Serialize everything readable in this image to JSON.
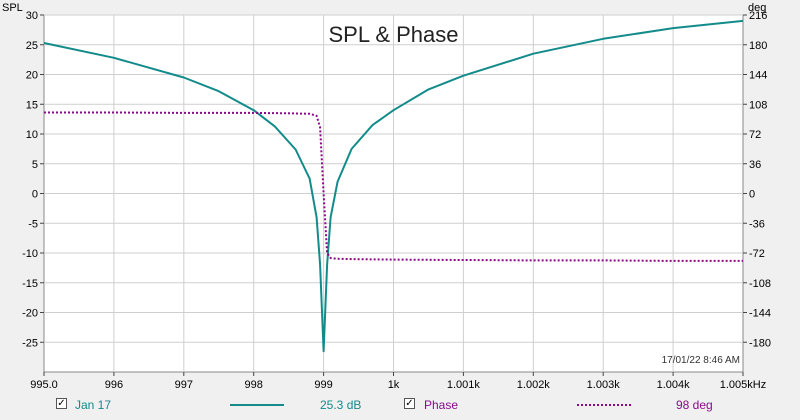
{
  "chart_data": {
    "type": "line",
    "title": "SPL & Phase",
    "left_axis_unit": "SPL",
    "right_axis_unit": "deg",
    "x_ticks": [
      "995.0",
      "996",
      "997",
      "998",
      "999",
      "1k",
      "1.001k",
      "1.002k",
      "1.003k",
      "1.004k",
      "1.005kHz"
    ],
    "x_range": [
      995.0,
      1005.0
    ],
    "y_left_range": [
      -30,
      30
    ],
    "y_left_ticks": [
      "30",
      "25",
      "20",
      "15",
      "10",
      "5",
      "0",
      "-5",
      "-10",
      "-15",
      "-20",
      "-25"
    ],
    "y_right_range": [
      -216,
      216
    ],
    "y_right_ticks": [
      "216",
      "180",
      "144",
      "108",
      "72",
      "36",
      "0",
      "-36",
      "-72",
      "-108",
      "-144",
      "-180"
    ],
    "grid": true,
    "timestamp": "17/01/22 8:46 AM",
    "series": [
      {
        "name": "Jan 17",
        "axis": "left",
        "color": "#138b8b",
        "style": "solid",
        "x": [
          995.0,
          996.0,
          997.0,
          997.5,
          998.0,
          998.3,
          998.6,
          998.8,
          998.9,
          998.95,
          999.0,
          999.05,
          999.1,
          999.2,
          999.4,
          999.7,
          1000.0,
          1000.5,
          1001.0,
          1002.0,
          1003.0,
          1004.0,
          1005.0
        ],
        "values": [
          25.3,
          22.8,
          19.5,
          17.2,
          14.0,
          11.3,
          7.4,
          2.5,
          -4.0,
          -12.0,
          -26.5,
          -12.0,
          -4.0,
          2.0,
          7.5,
          11.5,
          14.0,
          17.5,
          19.8,
          23.5,
          26.0,
          27.8,
          29.0
        ]
      },
      {
        "name": "Phase",
        "axis": "right",
        "color": "#8a0a8a",
        "style": "dotted",
        "x": [
          995.0,
          996.0,
          997.0,
          998.0,
          998.5,
          998.8,
          998.9,
          998.95,
          999.0,
          999.05,
          999.1,
          999.2,
          999.5,
          1000.0,
          1001.0,
          1002.0,
          1003.0,
          1004.0,
          1005.0
        ],
        "values": [
          98,
          98,
          97.5,
          97.5,
          97,
          96.5,
          94,
          80,
          0,
          -72,
          -78,
          -79,
          -79.5,
          -80,
          -80.5,
          -81,
          -81,
          -81.5,
          -81.5
        ]
      }
    ]
  },
  "legend": {
    "series1_label": "Jan 17",
    "series1_value": "25.3 dB",
    "series2_label": "Phase",
    "series2_value": "98 deg",
    "check_mark": "✓"
  },
  "colors": {
    "spl": "#138b8b",
    "phase": "#8a0a8a",
    "plot_bg": "#ffffff",
    "grid": "#cfcfcf"
  }
}
